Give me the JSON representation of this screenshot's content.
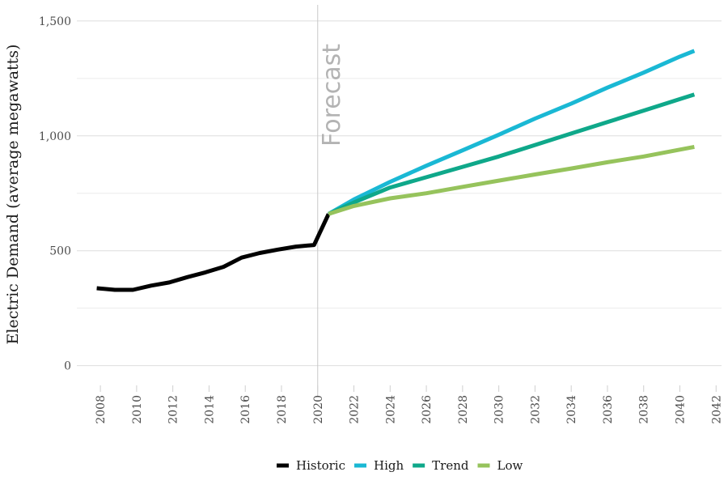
{
  "chart_data": {
    "type": "line",
    "title": "",
    "xlabel": "",
    "ylabel": "Electric Demand (average megawatts)",
    "xlim": [
      2006.7,
      2042.3
    ],
    "ylim": [
      -100,
      1570
    ],
    "x_ticks": [
      2008,
      2010,
      2012,
      2014,
      2016,
      2018,
      2020,
      2022,
      2024,
      2026,
      2028,
      2030,
      2032,
      2034,
      2036,
      2038,
      2040,
      2042
    ],
    "y_ticks": [
      0,
      500,
      1000,
      1500
    ],
    "y_tick_labels": [
      "0",
      "500",
      "1,000",
      "1,500"
    ],
    "grid": true,
    "legend_position": "bottom",
    "annotation": {
      "text": "Forecast",
      "x": 2020
    },
    "series": [
      {
        "name": "Historic",
        "color": "#000000",
        "x": [
          2007.8,
          2008.8,
          2009.8,
          2010.8,
          2011.8,
          2012.8,
          2013.8,
          2014.8,
          2015.8,
          2016.8,
          2017.8,
          2018.8,
          2019.8,
          2020.6
        ],
        "y": [
          337,
          330,
          330,
          348,
          362,
          385,
          406,
          430,
          470,
          490,
          505,
          518,
          525,
          660
        ]
      },
      {
        "name": "High",
        "color": "#1ab8d4",
        "x": [
          2020.6,
          2022,
          2024,
          2026,
          2028,
          2030,
          2032,
          2034,
          2036,
          2038,
          2040,
          2040.8
        ],
        "y": [
          660,
          723,
          800,
          870,
          937,
          1005,
          1075,
          1140,
          1210,
          1275,
          1345,
          1370
        ]
      },
      {
        "name": "Trend",
        "color": "#0fa88a",
        "x": [
          2020.6,
          2022,
          2024,
          2026,
          2028,
          2030,
          2032,
          2034,
          2036,
          2038,
          2040,
          2040.8
        ],
        "y": [
          660,
          710,
          775,
          820,
          865,
          910,
          960,
          1010,
          1060,
          1110,
          1160,
          1180
        ]
      },
      {
        "name": "Low",
        "color": "#96c35c",
        "x": [
          2020.6,
          2022,
          2024,
          2026,
          2028,
          2030,
          2032,
          2034,
          2036,
          2038,
          2040,
          2040.8
        ],
        "y": [
          660,
          695,
          728,
          750,
          778,
          805,
          832,
          858,
          885,
          910,
          940,
          952
        ]
      }
    ]
  }
}
